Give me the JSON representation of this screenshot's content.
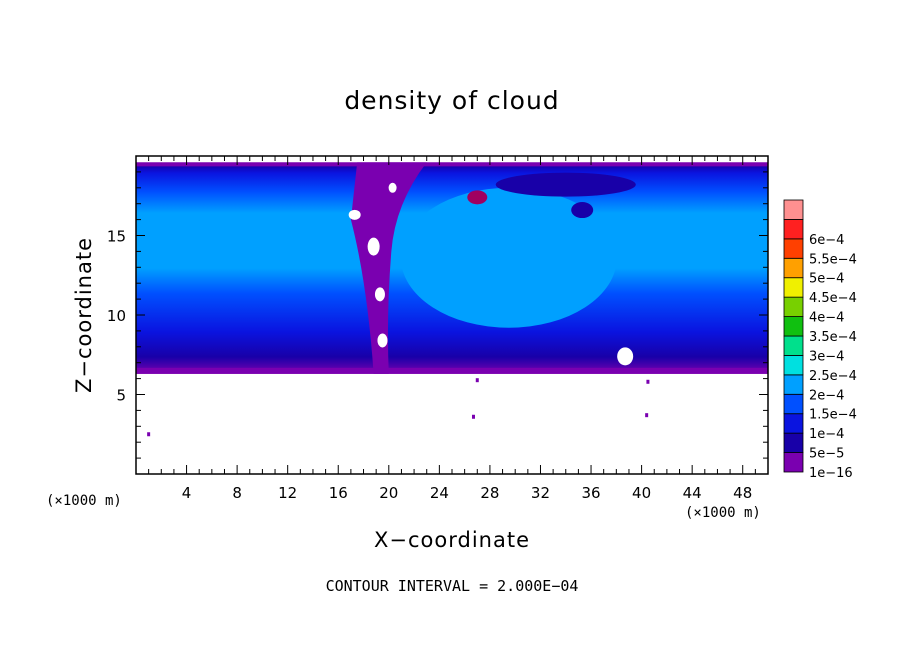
{
  "chart_data": {
    "type": "heatmap",
    "title": "density of cloud",
    "xlabel": "X−coordinate",
    "ylabel": "Z−coordinate",
    "x_unit": "(×1000 m)",
    "y_unit": "(×1000 m)",
    "xlim": [
      0,
      50
    ],
    "ylim": [
      0,
      20
    ],
    "x_ticks": [
      "4",
      "8",
      "12",
      "16",
      "20",
      "24",
      "28",
      "32",
      "36",
      "40",
      "44",
      "48"
    ],
    "y_ticks": [
      "5",
      "10",
      "15"
    ],
    "footer": "CONTOUR INTERVAL = 2.000E−04",
    "colorbar": {
      "labels": [
        "1e−16",
        "5e−5",
        "1e−4",
        "1.5e−4",
        "2e−4",
        "2.5e−4",
        "3e−4",
        "3.5e−4",
        "4e−4",
        "4.5e−4",
        "5e−4",
        "5.5e−4",
        "6e−4"
      ],
      "colors": [
        "#7a00b0",
        "#1800a8",
        "#0a14e0",
        "#0050ff",
        "#00a0ff",
        "#00e0e0",
        "#00e08c",
        "#10c010",
        "#78d000",
        "#f0f000",
        "#ffa000",
        "#ff4000",
        "#ff2020",
        "#ff9090"
      ]
    },
    "cloud_base_z": 6.3,
    "cloud_top_z": 19.6,
    "bands": [
      {
        "level": "1e−16",
        "color": "#7a00b0"
      },
      {
        "level": "5e−5",
        "color": "#1800a8"
      },
      {
        "level": "1e−4",
        "color": "#0a14e0"
      },
      {
        "level": "1.5e−4",
        "color": "#0050ff"
      },
      {
        "level": "2e−4",
        "color": "#00a0ff"
      }
    ]
  }
}
